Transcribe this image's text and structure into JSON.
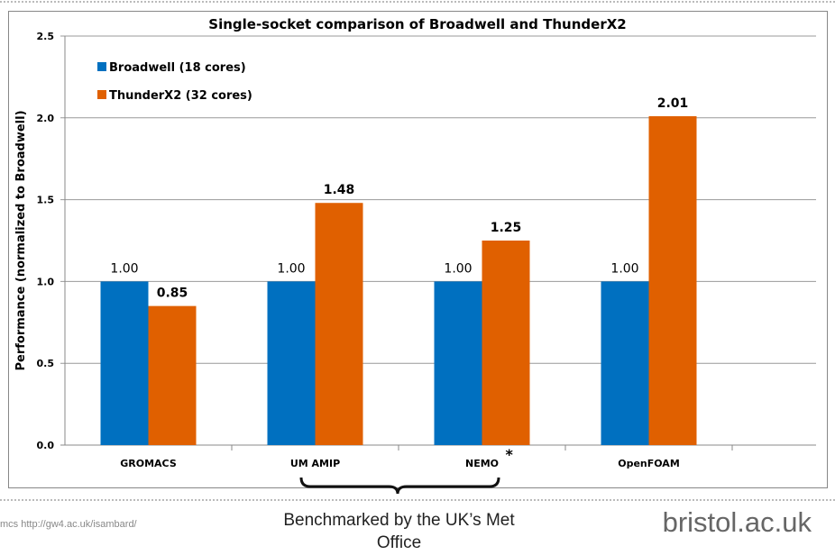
{
  "chart_data": {
    "type": "bar",
    "title": "Single-socket comparison of Broadwell and ThunderX2",
    "ylabel": "Performance (normalized to Broadwell)",
    "xlabel": "",
    "categories": [
      "GROMACS",
      "UM AMIP",
      "NEMO",
      "OpenFOAM"
    ],
    "category_annotations": {
      "NEMO": "*"
    },
    "series": [
      {
        "name": "Broadwell (18 cores)",
        "color": "#0070C0",
        "values": [
          1.0,
          1.0,
          1.0,
          1.0
        ],
        "labels": [
          "1.00",
          "1.00",
          "1.00",
          "1.00"
        ]
      },
      {
        "name": "ThunderX2 (32 cores)",
        "color": "#E06000",
        "values": [
          0.85,
          1.48,
          1.25,
          2.01
        ],
        "labels": [
          "0.85",
          "1.48",
          "1.25",
          "2.01"
        ]
      }
    ],
    "ylim": [
      0,
      2.5
    ],
    "yticks": [
      "0.0",
      "0.5",
      "1.0",
      "1.5",
      "2.0",
      "2.5"
    ],
    "grid": true,
    "legend": "top-left"
  },
  "footer": {
    "left": "mcs   http://gw4.ac.uk/isambard/",
    "bracket_note": "Benchmarked by the UK’s Met Office",
    "brand": "bristol.ac.uk"
  }
}
